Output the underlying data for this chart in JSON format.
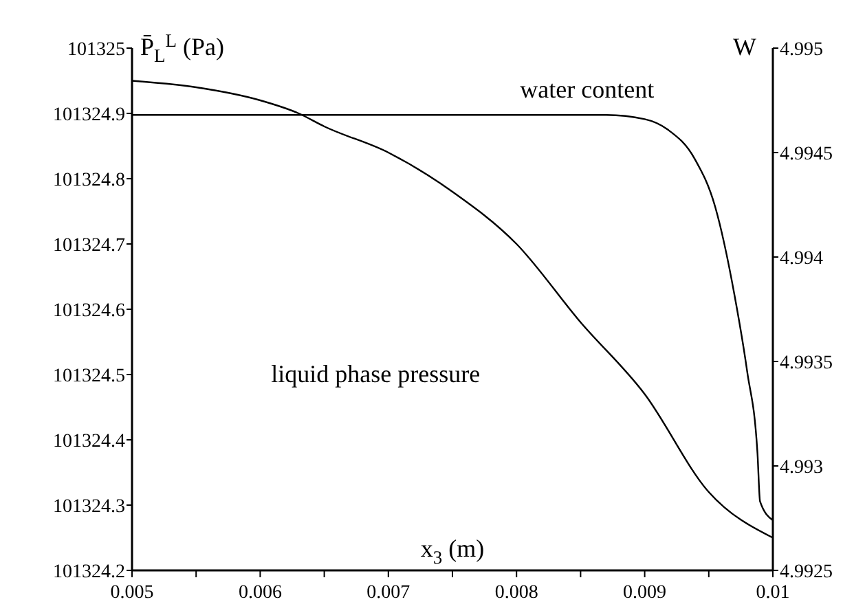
{
  "chart_data": {
    "type": "line",
    "xlabel": "x$_{3}$ (m)",
    "ylabel": "P̄$_{L}$$^{L}$ (Pa)",
    "y2label": "W",
    "x": [
      0.005,
      0.0055,
      0.006,
      0.0063,
      0.0065,
      0.007,
      0.0075,
      0.008,
      0.0085,
      0.009,
      0.0095,
      0.01
    ],
    "xlim": [
      0.005,
      0.01
    ],
    "xticks": [
      0.005,
      {
        "value": 0.0055,
        "label": null
      },
      0.006,
      {
        "value": 0.0065,
        "label": null
      },
      0.007,
      {
        "value": 0.0075,
        "label": null
      },
      0.008,
      {
        "value": 0.0085,
        "label": null
      },
      0.009,
      {
        "value": 0.0095,
        "label": null
      },
      0.01
    ],
    "ylim": [
      101324.2,
      101325
    ],
    "yticks": [
      101324.2,
      101324.3,
      101324.4,
      101324.5,
      101324.6,
      101324.7,
      101324.8,
      101324.9,
      101325
    ],
    "y2lim": [
      4.9925,
      4.995
    ],
    "y2ticks": [
      4.9925,
      4.993,
      4.9935,
      4.994,
      4.9945,
      4.995
    ],
    "series": [
      {
        "color": "#000000",
        "values": [
          101324.95,
          101324.94,
          101324.92,
          101324.9,
          101324.88,
          101324.84,
          101324.78,
          101324.7,
          101324.58,
          101324.47,
          101324.32,
          101324.25
        ]
      },
      {
        "color": "#000000",
        "axis": "y2",
        "x": [
          0.005,
          0.006,
          0.007,
          0.008,
          0.0087,
          0.009,
          0.00918,
          0.00939,
          0.00955,
          0.0097,
          0.0098,
          0.00988,
          0.0099,
          0.01
        ],
        "values": [
          4.99468,
          4.99468,
          4.99468,
          4.99468,
          4.99468,
          4.99466,
          4.99461,
          4.99447,
          4.99424,
          4.99382,
          4.99345,
          4.99306,
          4.99283,
          4.99274
        ]
      }
    ],
    "annotations": [
      "water content",
      "liquid phase pressure"
    ],
    "grid": false,
    "line_style": "solid"
  }
}
